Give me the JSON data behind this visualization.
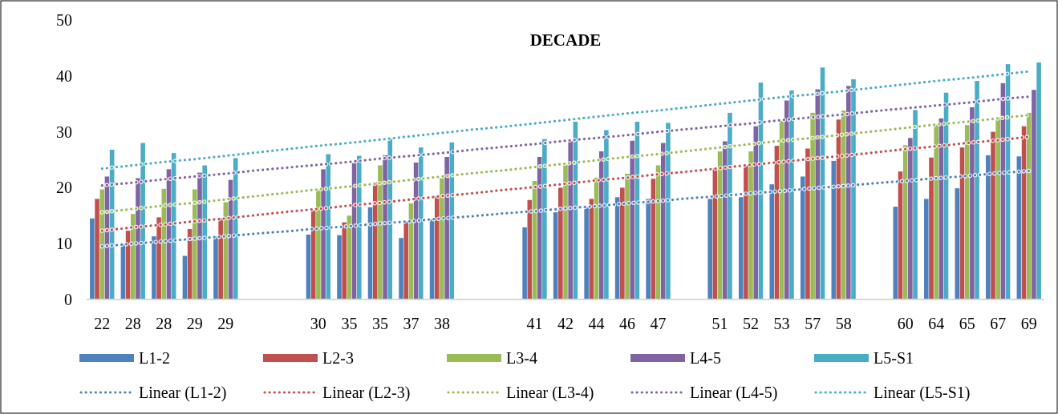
{
  "chart_data": {
    "type": "bar",
    "title": "DECADE",
    "categories": [
      "22",
      "28",
      "28",
      "29",
      "29",
      null,
      null,
      "30",
      "35",
      "35",
      "37",
      "38",
      null,
      null,
      "41",
      "42",
      "44",
      "46",
      "47",
      null,
      "51",
      "52",
      "53",
      "57",
      "58",
      null,
      "60",
      "64",
      "65",
      "67",
      "69"
    ],
    "ylim": [
      0,
      50
    ],
    "yticks": [
      0,
      10,
      20,
      30,
      40,
      50
    ],
    "legend": "bottom",
    "series": [
      {
        "name": "L1-2",
        "color": "#4f81bd",
        "values": [
          14.5,
          10,
          11.3,
          7.8,
          11.3,
          null,
          null,
          11.6,
          11.5,
          16.5,
          11,
          14.4,
          null,
          null,
          12.9,
          15.6,
          16.5,
          18.3,
          18,
          null,
          18,
          18.3,
          20.6,
          22,
          24.8,
          null,
          16.6,
          18,
          19.9,
          25.8,
          25.6
        ]
      },
      {
        "name": "L2-3",
        "color": "#c0504d",
        "values": [
          18,
          12.3,
          14.7,
          12.6,
          14.6,
          null,
          null,
          16,
          13.8,
          21,
          14,
          18.5,
          null,
          null,
          17.8,
          20,
          18,
          20,
          21.6,
          null,
          23.5,
          24,
          27.5,
          27,
          32.2,
          null,
          22.9,
          25.4,
          27.2,
          30,
          31
        ]
      },
      {
        "name": "L3-4",
        "color": "#9bbb59",
        "values": [
          19.7,
          15.3,
          19.8,
          19.7,
          17.4,
          null,
          null,
          19.7,
          15,
          24,
          17.2,
          21.7,
          null,
          null,
          21.2,
          24.1,
          21.8,
          22.5,
          24,
          null,
          26.5,
          26.5,
          32,
          33.4,
          33.8,
          null,
          27.6,
          31.3,
          31.2,
          32.6,
          33.4
        ]
      },
      {
        "name": "L4-5",
        "color": "#8064a2",
        "values": [
          22,
          21.7,
          23.3,
          22.7,
          21.4,
          null,
          null,
          23.3,
          24.4,
          25.8,
          24.5,
          25.5,
          null,
          null,
          25.5,
          28.4,
          26.5,
          28.4,
          28,
          null,
          28.3,
          31,
          35.6,
          37.6,
          38.2,
          null,
          28.9,
          32.4,
          34.4,
          38.7,
          37.5
        ]
      },
      {
        "name": "L5-S1",
        "color": "#4bacc6",
        "values": [
          26.8,
          28,
          26.2,
          24,
          25.3,
          null,
          null,
          26,
          25.7,
          28.8,
          27.2,
          28.1,
          null,
          null,
          28.7,
          31.8,
          30.3,
          31.8,
          31.6,
          null,
          33.4,
          38.8,
          37.4,
          41.5,
          39.4,
          null,
          33.9,
          37,
          39.1,
          42.1,
          42.4
        ]
      },
      {
        "name": "Linear (L1-2)",
        "type": "line",
        "line_style": "dotted",
        "color": "#4f81bd",
        "values": [
          9.5,
          10.0,
          10.4,
          10.9,
          11.3,
          11.8,
          12.2,
          12.7,
          13.1,
          13.6,
          14.0,
          14.5,
          14.9,
          15.4,
          15.8,
          16.3,
          16.7,
          17.2,
          17.6,
          18.1,
          18.5,
          19.0,
          19.4,
          19.9,
          20.3,
          20.8,
          21.2,
          21.7,
          22.1,
          22.6,
          23.0
        ]
      },
      {
        "name": "Linear (L2-3)",
        "type": "line",
        "line_style": "dotted",
        "color": "#c0504d",
        "values": [
          12.3,
          12.9,
          13.4,
          14.0,
          14.5,
          15.1,
          15.7,
          16.2,
          16.8,
          17.3,
          17.9,
          18.5,
          19.0,
          19.6,
          20.1,
          20.7,
          21.3,
          21.8,
          22.4,
          22.9,
          23.5,
          24.1,
          24.6,
          25.2,
          25.7,
          26.3,
          26.9,
          27.4,
          28.0,
          28.5,
          29.1
        ]
      },
      {
        "name": "Linear (L3-4)",
        "type": "line",
        "line_style": "dotted",
        "color": "#9bbb59",
        "values": [
          15.6,
          16.2,
          16.8,
          17.3,
          17.9,
          18.5,
          19.1,
          19.7,
          20.2,
          20.8,
          21.4,
          22.0,
          22.6,
          23.1,
          23.7,
          24.3,
          24.9,
          25.5,
          26.0,
          26.6,
          27.2,
          27.8,
          28.4,
          28.9,
          29.5,
          30.1,
          30.7,
          31.3,
          31.8,
          32.4,
          33.0
        ]
      },
      {
        "name": "Linear (L4-5)",
        "type": "line",
        "line_style": "dotted",
        "color": "#8064a2",
        "values": [
          20.4,
          20.9,
          21.5,
          22.0,
          22.5,
          23.1,
          23.6,
          24.1,
          24.6,
          25.2,
          25.7,
          26.2,
          26.8,
          27.3,
          27.8,
          28.4,
          28.9,
          29.4,
          30.0,
          30.5,
          31.0,
          31.5,
          32.1,
          32.6,
          33.1,
          33.7,
          34.2,
          34.7,
          35.2,
          35.8,
          36.3
        ]
      },
      {
        "name": "Linear (L5-S1)",
        "type": "line",
        "line_style": "dotted",
        "color": "#4bacc6",
        "values": [
          23.4,
          24.0,
          24.6,
          25.1,
          25.7,
          26.3,
          26.9,
          27.5,
          28.0,
          28.6,
          29.2,
          29.8,
          30.4,
          30.9,
          31.5,
          32.1,
          32.7,
          33.3,
          33.8,
          34.4,
          35.0,
          35.6,
          36.2,
          36.7,
          37.3,
          37.9,
          38.5,
          39.1,
          39.6,
          40.2,
          40.8
        ]
      }
    ]
  }
}
